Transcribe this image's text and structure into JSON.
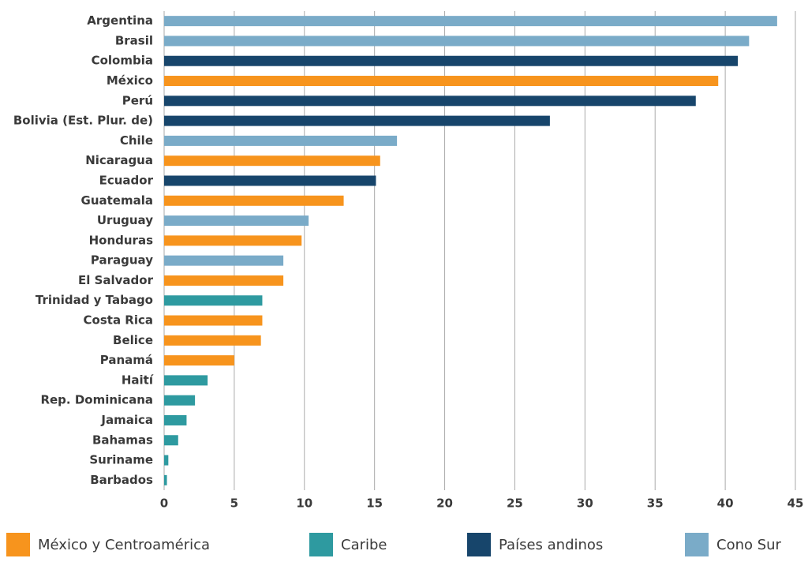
{
  "chart_data": {
    "type": "bar",
    "orientation": "horizontal",
    "categories": [
      "Argentina",
      "Brasil",
      "Colombia",
      "México",
      "Perú",
      "Bolivia (Est. Plur. de)",
      "Chile",
      "Nicaragua",
      "Ecuador",
      "Guatemala",
      "Uruguay",
      "Honduras",
      "Paraguay",
      "El Salvador",
      "Trinidad y Tabago",
      "Costa Rica",
      "Belice",
      "Panamá",
      "Haití",
      "Rep. Dominicana",
      "Jamaica",
      "Bahamas",
      "Suriname",
      "Barbados"
    ],
    "series": [
      {
        "name": "México y Centroamérica",
        "color": "#f7941d",
        "values": [
          null,
          null,
          null,
          39.5,
          null,
          null,
          null,
          15.4,
          null,
          12.8,
          null,
          9.8,
          null,
          8.5,
          null,
          7.0,
          6.9,
          5.0,
          null,
          null,
          null,
          null,
          null,
          null
        ]
      },
      {
        "name": "Caribe",
        "color": "#2e9aa0",
        "values": [
          null,
          null,
          null,
          null,
          null,
          null,
          null,
          null,
          null,
          null,
          null,
          null,
          null,
          null,
          7.0,
          null,
          null,
          null,
          3.1,
          2.2,
          1.6,
          1.0,
          0.3,
          0.2
        ]
      },
      {
        "name": "Países andinos",
        "color": "#17456b",
        "values": [
          null,
          null,
          40.9,
          null,
          37.9,
          27.5,
          null,
          null,
          15.1,
          null,
          null,
          null,
          null,
          null,
          null,
          null,
          null,
          null,
          null,
          null,
          null,
          null,
          null,
          null
        ]
      },
      {
        "name": "Cono Sur",
        "color": "#7aabc8",
        "values": [
          43.7,
          41.7,
          null,
          null,
          null,
          null,
          16.6,
          null,
          null,
          null,
          10.3,
          null,
          8.5,
          null,
          null,
          null,
          null,
          null,
          null,
          null,
          null,
          null,
          null,
          null
        ]
      }
    ],
    "xlim": [
      0,
      45
    ],
    "xticks": [
      0,
      5,
      10,
      15,
      20,
      25,
      30,
      35,
      40,
      45
    ],
    "grid": true
  }
}
